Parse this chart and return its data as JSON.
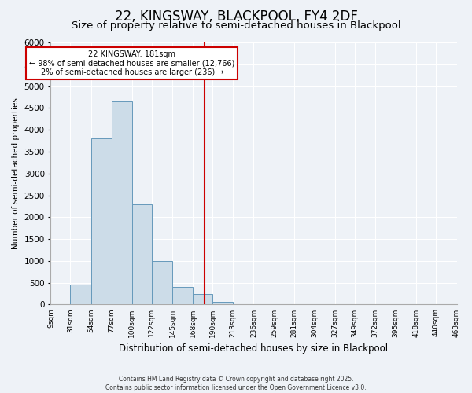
{
  "title": "22, KINGSWAY, BLACKPOOL, FY4 2DF",
  "subtitle": "Size of property relative to semi-detached houses in Blackpool",
  "xlabel": "Distribution of semi-detached houses by size in Blackpool",
  "ylabel": "Number of semi-detached properties",
  "bin_labels": [
    "9sqm",
    "31sqm",
    "54sqm",
    "77sqm",
    "100sqm",
    "122sqm",
    "145sqm",
    "168sqm",
    "190sqm",
    "213sqm",
    "236sqm",
    "259sqm",
    "281sqm",
    "304sqm",
    "327sqm",
    "349sqm",
    "372sqm",
    "395sqm",
    "418sqm",
    "440sqm",
    "463sqm"
  ],
  "bin_edges": [
    9,
    31,
    54,
    77,
    100,
    122,
    145,
    168,
    190,
    213,
    236,
    259,
    281,
    304,
    327,
    349,
    372,
    395,
    418,
    440,
    463
  ],
  "bar_heights": [
    0,
    450,
    3800,
    4650,
    2300,
    1000,
    400,
    250,
    70,
    0,
    0,
    0,
    0,
    0,
    0,
    0,
    0,
    0,
    0,
    0
  ],
  "bar_facecolor": "#ccdce8",
  "bar_edgecolor": "#6699bb",
  "vline_x": 181,
  "vline_color": "#cc0000",
  "annotation_title": "22 KINGSWAY: 181sqm",
  "annotation_line1": "← 98% of semi-detached houses are smaller (12,766)",
  "annotation_line2": "2% of semi-detached houses are larger (236) →",
  "annotation_box_edgecolor": "#cc0000",
  "ylim": [
    0,
    6000
  ],
  "background_color": "#eef2f7",
  "plot_background": "#eef2f7",
  "footer1": "Contains HM Land Registry data © Crown copyright and database right 2025.",
  "footer2": "Contains public sector information licensed under the Open Government Licence v3.0.",
  "grid_color": "#ffffff",
  "title_fontsize": 12,
  "subtitle_fontsize": 9.5
}
